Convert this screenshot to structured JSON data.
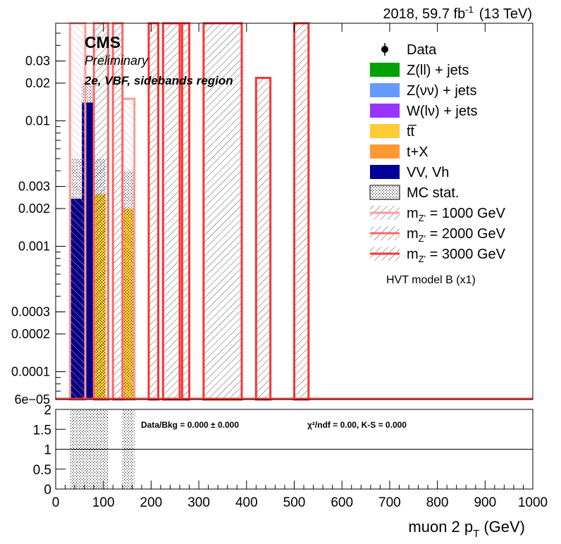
{
  "header": {
    "lumi_prefix": "2018, 59.7 fb",
    "lumi_sup": "-1",
    "energy": "(13 TeV)"
  },
  "labels": {
    "cms": "CMS",
    "preliminary": "Preliminary",
    "region": "2e, VBF, sidebands region",
    "xlabel_main": "muon 2 p",
    "xlabel_sub": "T",
    "xlabel_unit": "(GeV)"
  },
  "ratio_text": {
    "databkg": "Data/Bkg = 0.000 ± 0.000",
    "chi2": "χ²/ndf = 0.00,   K-S = 0.000"
  },
  "legend": {
    "items": [
      {
        "kind": "marker",
        "label": "Data"
      },
      {
        "kind": "fill",
        "label": "Z(ll) + jets",
        "color": "#00a100"
      },
      {
        "kind": "fill",
        "label": "Z(νν) + jets",
        "color": "#6699ff"
      },
      {
        "kind": "fill",
        "label": "W(lν) + jets",
        "color": "#9933ff"
      },
      {
        "kind": "fill",
        "label": "tt̅",
        "color": "#ffcc33"
      },
      {
        "kind": "fill",
        "label": "t+X",
        "color": "#ff9933"
      },
      {
        "kind": "fill",
        "label": "VV, Vh",
        "color": "#000099"
      },
      {
        "kind": "stat",
        "label": "MC stat."
      },
      {
        "kind": "signal",
        "label_main": "m",
        "label_sub": "Z'",
        "label_tail": " = 1000 GeV",
        "color": "#ff9999"
      },
      {
        "kind": "signal",
        "label_main": "m",
        "label_sub": "Z'",
        "label_tail": " = 2000 GeV",
        "color": "#ff6666"
      },
      {
        "kind": "signal",
        "label_main": "m",
        "label_sub": "Z'",
        "label_tail": " = 3000 GeV",
        "color": "#ff3333"
      }
    ],
    "note": "HVT model B (x1)"
  },
  "chart_data": {
    "type": "bar",
    "scale": "log",
    "xlim": [
      0,
      1000
    ],
    "ylim": [
      6e-05,
      0.06
    ],
    "bin_width": 20,
    "x_ticks": [
      0,
      100,
      200,
      300,
      400,
      500,
      600,
      700,
      800,
      900,
      1000
    ],
    "x_tick_labels": [
      "0",
      "100",
      "200",
      "300",
      "400",
      "500",
      "600",
      "700",
      "800",
      "900",
      "1000"
    ],
    "y_ticks": [
      0.03,
      0.02,
      0.01,
      0.003,
      0.002,
      0.001,
      0.0003,
      0.0002,
      0.0001,
      6e-05
    ],
    "y_tick_labels": [
      "0.03",
      "0.02",
      "0.01",
      "0.003",
      "0.002",
      "0.001",
      "0.0003",
      "0.0002",
      "0.0001",
      "6e−05"
    ],
    "background": [
      {
        "x0": 30,
        "x1": 55,
        "value": 0.0024,
        "color": "#000099",
        "stat_up": 0.005
      },
      {
        "x0": 55,
        "x1": 80,
        "value": 0.014,
        "color": "#000099",
        "stat_up": 0.02
      },
      {
        "x0": 80,
        "x1": 105,
        "value": 0.0026,
        "color": "#ffcc33",
        "stat_up": 0.005
      },
      {
        "x0": 140,
        "x1": 165,
        "value": 0.002,
        "color": "#ffcc33",
        "stat_up": 0.004
      }
    ],
    "signals": [
      {
        "name": "m_Z' = 1000 GeV",
        "color": "#ff9999",
        "bins": [
          {
            "x0": 30,
            "x1": 62,
            "value": 0.06
          },
          {
            "x0": 140,
            "x1": 165,
            "value": 0.015
          }
        ]
      },
      {
        "name": "m_Z' = 2000 GeV",
        "color": "#ff6666",
        "bins": [
          {
            "x0": 80,
            "x1": 110,
            "value": 0.06
          },
          {
            "x0": 120,
            "x1": 140,
            "value": 0.06
          }
        ]
      },
      {
        "name": "m_Z' = 3000 GeV",
        "color": "#ff3333",
        "bins": [
          {
            "x0": 195,
            "x1": 215,
            "value": 0.06
          },
          {
            "x0": 225,
            "x1": 260,
            "value": 0.06
          },
          {
            "x0": 265,
            "x1": 280,
            "value": 0.06
          },
          {
            "x0": 310,
            "x1": 390,
            "value": 0.06
          },
          {
            "x0": 420,
            "x1": 450,
            "value": 0.022
          },
          {
            "x0": 500,
            "x1": 530,
            "value": 0.06
          }
        ]
      }
    ],
    "ratio": {
      "ylim": [
        0,
        2
      ],
      "y_ticks": [
        0,
        0.5,
        1,
        1.5,
        2
      ],
      "y_tick_labels": [
        "0",
        "0.5",
        "1",
        "1.5",
        "2"
      ],
      "reference_line": 1,
      "stat_bands": [
        {
          "x0": 30,
          "x1": 110
        },
        {
          "x0": 140,
          "x1": 165
        }
      ]
    }
  }
}
